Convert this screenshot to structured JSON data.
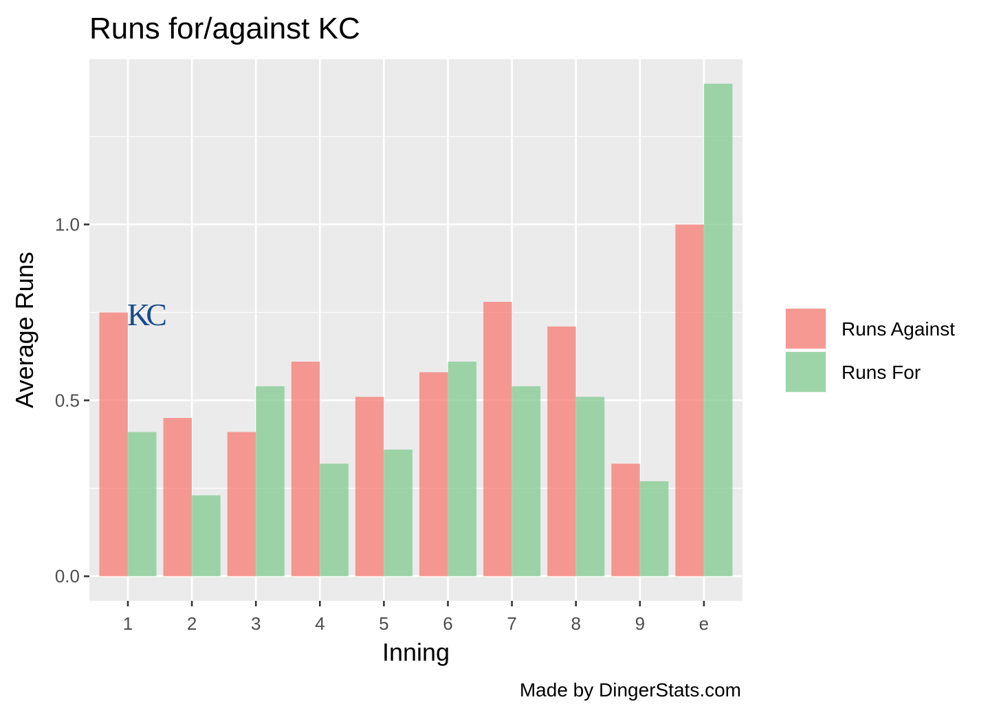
{
  "chart_data": {
    "type": "bar",
    "title": "Runs for/against KC",
    "xlabel": "Inning",
    "ylabel": "Average Runs",
    "caption": "Made by DingerStats.com",
    "logo_text": "KC",
    "categories": [
      "1",
      "2",
      "3",
      "4",
      "5",
      "6",
      "7",
      "8",
      "9",
      "e"
    ],
    "series": [
      {
        "name": "Runs Against",
        "color": "#F8766D",
        "values": [
          0.75,
          0.45,
          0.41,
          0.61,
          0.51,
          0.58,
          0.78,
          0.71,
          0.32,
          1.0
        ]
      },
      {
        "name": "Runs For",
        "color": "#7CC98B",
        "values": [
          0.41,
          0.23,
          0.54,
          0.32,
          0.36,
          0.61,
          0.54,
          0.51,
          0.27,
          1.4
        ]
      }
    ],
    "yticks": [
      0.0,
      0.5,
      1.0
    ],
    "ytick_labels": [
      "0.0",
      "0.5",
      "1.0"
    ],
    "ylim": [
      -0.07,
      1.47
    ],
    "grid": true,
    "legend_position": "right",
    "panel_color": "#EBEBEB",
    "logo_color": "#1a4a8a"
  }
}
